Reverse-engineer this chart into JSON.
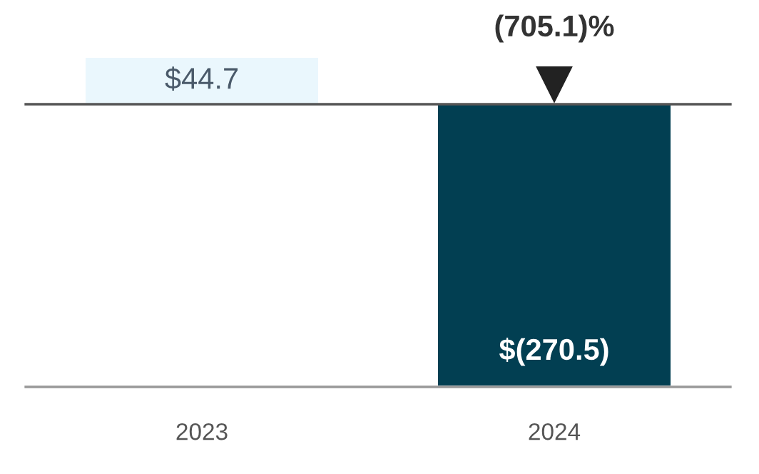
{
  "chart_data": {
    "type": "bar",
    "categories": [
      "2023",
      "2024"
    ],
    "values": [
      44.7,
      -270.5
    ],
    "colors": [
      "#eaf7fd",
      "#023f52"
    ],
    "value_labels": [
      "$44.7",
      "$(270.5)"
    ],
    "annotations": [
      "(705.1)%"
    ]
  }
}
